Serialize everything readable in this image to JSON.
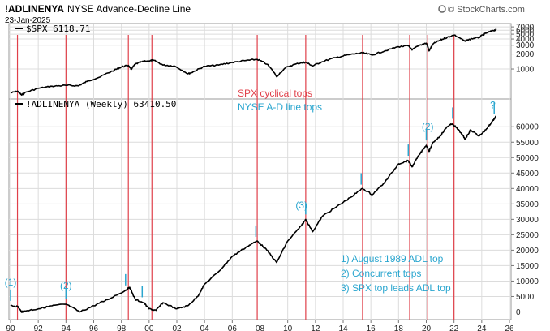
{
  "header": {
    "symbol": "!ADLINENYA",
    "name": "NYSE Advance-Decline Line",
    "date": "23-Jan-2025",
    "logo": "© StockCharts.com"
  },
  "chart_data": [
    {
      "type": "line",
      "legend": "$SPX 6118.71",
      "scale": "log",
      "yticks": [
        1000,
        2000,
        3000,
        4000,
        5000,
        6000,
        7000
      ],
      "ytick_labels": [
        "1000",
        "2000",
        "3000",
        "4000",
        "5000",
        "6000",
        "7000"
      ],
      "x": [
        1990.0,
        1990.5,
        1990.8,
        1991.0,
        1992.0,
        1993.0,
        1994.0,
        1994.9,
        1995.5,
        1996.5,
        1997.5,
        1998.0,
        1998.5,
        1998.7,
        1999.0,
        1999.5,
        2000.0,
        2000.3,
        2001.0,
        2001.8,
        2002.8,
        2003.2,
        2004.0,
        2005.0,
        2006.0,
        2007.0,
        2007.8,
        2008.5,
        2009.2,
        2010.0,
        2011.0,
        2011.3,
        2011.8,
        2012.5,
        2013.5,
        2014.5,
        2015.4,
        2016.1,
        2017.0,
        2018.0,
        2018.7,
        2018.97,
        2019.5,
        2020.0,
        2020.2,
        2020.5,
        2021.0,
        2021.5,
        2022.0,
        2022.8,
        2023.2,
        2023.8,
        2024.3,
        2024.8,
        2025.05
      ],
      "y": [
        330,
        360,
        300,
        330,
        410,
        450,
        470,
        460,
        560,
        700,
        950,
        1100,
        1180,
        980,
        1250,
        1400,
        1450,
        1500,
        1200,
        1150,
        800,
        880,
        1130,
        1200,
        1350,
        1480,
        1560,
        1250,
        700,
        1120,
        1340,
        1360,
        1150,
        1400,
        1700,
        1950,
        2110,
        1900,
        2300,
        2800,
        2930,
        2400,
        3000,
        3300,
        2300,
        3200,
        3800,
        4300,
        4800,
        3600,
        4000,
        4300,
        5200,
        5900,
        6118.71
      ]
    },
    {
      "type": "line",
      "legend": "!ADLINENYA (Weekly) 63410.50",
      "yticks": [
        0,
        5000,
        10000,
        15000,
        20000,
        25000,
        30000,
        35000,
        40000,
        45000,
        50000,
        55000,
        60000
      ],
      "ytick_labels": [
        "0",
        "5000",
        "10000",
        "15000",
        "20000",
        "25000",
        "30000",
        "35000",
        "40000",
        "45000",
        "50000",
        "55000",
        "60000"
      ],
      "x": [
        1990.0,
        1990.5,
        1990.8,
        1991.0,
        1992.0,
        1993.0,
        1994.0,
        1995.0,
        1996.0,
        1997.0,
        1998.3,
        1998.6,
        1999.0,
        1999.6,
        2000.0,
        2000.5,
        2001.0,
        2002.0,
        2002.8,
        2003.5,
        2004.0,
        2005.0,
        2006.0,
        2007.0,
        2007.8,
        2008.5,
        2009.2,
        2010.0,
        2011.0,
        2011.3,
        2011.8,
        2012.5,
        2013.5,
        2014.5,
        2015.4,
        2016.1,
        2017.0,
        2018.0,
        2018.7,
        2018.97,
        2019.5,
        2020.0,
        2020.2,
        2020.5,
        2021.0,
        2021.5,
        2021.9,
        2022.5,
        2022.8,
        2023.2,
        2023.8,
        2024.3,
        2024.8,
        2025.05
      ],
      "y": [
        2000,
        1800,
        0,
        300,
        1000,
        2000,
        2500,
        0,
        2000,
        4000,
        7000,
        8000,
        4000,
        3000,
        1000,
        500,
        3000,
        1000,
        2000,
        5000,
        9000,
        13000,
        18000,
        21000,
        23000,
        20000,
        16000,
        23000,
        28000,
        30000,
        26000,
        31000,
        34000,
        37000,
        40000,
        38000,
        42000,
        48000,
        49000,
        47000,
        51000,
        54000,
        52000,
        55000,
        57000,
        60000,
        61000,
        58000,
        56000,
        59000,
        57000,
        59000,
        62000,
        63410.5
      ]
    }
  ],
  "x_axis": {
    "ticks": [
      1990,
      1992,
      1994,
      1996,
      1998,
      2000,
      2002,
      2004,
      2006,
      2008,
      2010,
      2012,
      2014,
      2016,
      2018,
      2020,
      2022,
      2024,
      2026
    ],
    "labels": [
      "90",
      "92",
      "94",
      "96",
      "98",
      "00",
      "02",
      "04",
      "06",
      "08",
      "10",
      "12",
      "14",
      "16",
      "18",
      "20",
      "22",
      "24",
      "26"
    ]
  },
  "red_lines": [
    1990.5,
    1994.0,
    1998.5,
    2000.2,
    2007.8,
    2011.3,
    2015.4,
    2018.8,
    2020.1,
    2022.0
  ],
  "blue_marks": [
    1990.0,
    1994.0,
    1998.3,
    1999.5,
    2007.7,
    2011.3,
    2015.3,
    2018.7,
    2020.0,
    2021.9,
    2024.9
  ],
  "annotations": {
    "red_title": "SPX cyclical tops",
    "blue_title": "NYSE A-D line tops",
    "labels": [
      {
        "text": "(1)",
        "x": 1990.0,
        "y": 8500
      },
      {
        "text": "(2)",
        "x": 1994.0,
        "y": 7500
      },
      {
        "text": "(3)",
        "x": 2011.0,
        "y": 33500
      },
      {
        "text": "(2)",
        "x": 2020.1,
        "y": 59000
      },
      {
        "text": "?",
        "x": 2024.8,
        "y": 66000
      }
    ],
    "notes": [
      "1) August 1989 ADL top",
      "2) Concurrent tops",
      "3) SPX top leads ADL top"
    ]
  },
  "colors": {
    "line": "#000000",
    "red": "#e0404a",
    "blue": "#2aa6cf",
    "grid": "#dcdcdc"
  }
}
